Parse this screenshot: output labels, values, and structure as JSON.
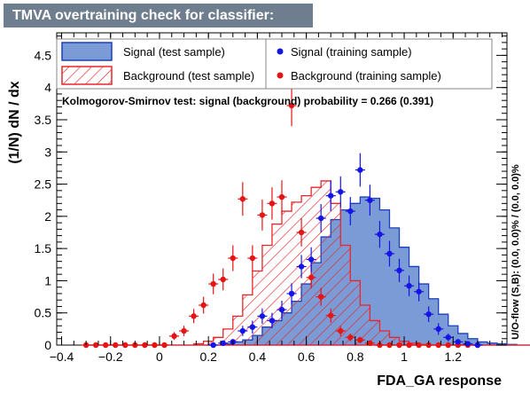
{
  "window": {
    "title": "TMVA overtraining check for classifier: FDA_GA"
  },
  "colors": {
    "signal_fill": "#7b9bd6",
    "signal_line": "#1c3fbf",
    "background_line": "#e8262b",
    "signal_points": "#1414e6",
    "background_points": "#e61414"
  },
  "chart_data": {
    "type": "bar",
    "title": "TMVA overtraining check for classifier: FDA_GA",
    "xlabel": "FDA_GA response",
    "ylabel": "(1/N) dN / dx",
    "xlim": [
      -0.42,
      1.42
    ],
    "ylim": [
      0,
      4.85
    ],
    "xticks": [
      "−0.4",
      "−0.2",
      "0",
      "0.2",
      "0.4",
      "0.6",
      "0.8",
      "1",
      "1.2"
    ],
    "xtick_values": [
      -0.4,
      -0.2,
      0,
      0.2,
      0.4,
      0.6,
      0.8,
      1.0,
      1.2
    ],
    "yticks": [
      "0",
      "0.5",
      "1",
      "1.5",
      "2",
      "2.5",
      "3",
      "3.5",
      "4",
      "4.5"
    ],
    "ytick_values": [
      0,
      0.5,
      1,
      1.5,
      2,
      2.5,
      3,
      3.5,
      4,
      4.5
    ],
    "bin_edges_start": -0.3,
    "bin_width": 0.04,
    "signal_test": [
      0,
      0,
      0,
      0,
      0,
      0,
      0,
      0,
      0,
      0,
      0,
      0,
      0,
      0,
      0.02,
      0.05,
      0.08,
      0.15,
      0.28,
      0.38,
      0.5,
      0.68,
      0.95,
      1.28,
      1.68,
      1.95,
      2.1,
      2.2,
      2.3,
      2.28,
      2.1,
      1.82,
      1.52,
      1.22,
      0.95,
      0.72,
      0.48,
      0.3,
      0.18,
      0.1,
      0.05,
      0.03,
      0.02,
      0.01,
      0,
      0
    ],
    "background_test": [
      0,
      0,
      0,
      0,
      0,
      0,
      0,
      0,
      0,
      0,
      0,
      0.02,
      0.06,
      0.12,
      0.25,
      0.45,
      0.78,
      1.15,
      1.55,
      1.88,
      2.08,
      2.22,
      2.32,
      2.45,
      2.55,
      2.2,
      1.55,
      1.0,
      0.62,
      0.38,
      0.22,
      0.12,
      0.06,
      0.03,
      0.01,
      0,
      0,
      0,
      0,
      0,
      0,
      0,
      0,
      0,
      0,
      0
    ],
    "signal_train": [
      {
        "x": 0.22,
        "y": 0.0,
        "e": 0.03
      },
      {
        "x": 0.26,
        "y": 0.03,
        "e": 0.03
      },
      {
        "x": 0.3,
        "y": 0.05,
        "e": 0.04
      },
      {
        "x": 0.34,
        "y": 0.22,
        "e": 0.08
      },
      {
        "x": 0.38,
        "y": 0.28,
        "e": 0.1
      },
      {
        "x": 0.42,
        "y": 0.45,
        "e": 0.12
      },
      {
        "x": 0.46,
        "y": 0.38,
        "e": 0.12
      },
      {
        "x": 0.5,
        "y": 0.55,
        "e": 0.14
      },
      {
        "x": 0.54,
        "y": 0.8,
        "e": 0.16
      },
      {
        "x": 0.58,
        "y": 1.22,
        "e": 0.18
      },
      {
        "x": 0.62,
        "y": 1.33,
        "e": 0.19
      },
      {
        "x": 0.66,
        "y": 1.97,
        "e": 0.22
      },
      {
        "x": 0.7,
        "y": 2.32,
        "e": 0.24
      },
      {
        "x": 0.74,
        "y": 2.38,
        "e": 0.24
      },
      {
        "x": 0.78,
        "y": 2.08,
        "e": 0.22
      },
      {
        "x": 0.82,
        "y": 2.72,
        "e": 0.26
      },
      {
        "x": 0.86,
        "y": 2.25,
        "e": 0.24
      },
      {
        "x": 0.9,
        "y": 1.72,
        "e": 0.21
      },
      {
        "x": 0.94,
        "y": 1.42,
        "e": 0.2
      },
      {
        "x": 0.98,
        "y": 1.16,
        "e": 0.18
      },
      {
        "x": 1.02,
        "y": 0.92,
        "e": 0.16
      },
      {
        "x": 1.06,
        "y": 0.83,
        "e": 0.15
      },
      {
        "x": 1.1,
        "y": 0.48,
        "e": 0.12
      },
      {
        "x": 1.14,
        "y": 0.25,
        "e": 0.09
      },
      {
        "x": 1.18,
        "y": 0.12,
        "e": 0.06
      },
      {
        "x": 1.22,
        "y": 0.05,
        "e": 0.04
      },
      {
        "x": 1.26,
        "y": 0.02,
        "e": 0.03
      },
      {
        "x": 1.3,
        "y": 0.0,
        "e": 0.02
      }
    ],
    "background_train": [
      {
        "x": -0.3,
        "y": 0.0,
        "e": 0.0
      },
      {
        "x": -0.26,
        "y": 0.0,
        "e": 0.0
      },
      {
        "x": -0.22,
        "y": 0.0,
        "e": 0.0
      },
      {
        "x": -0.18,
        "y": 0.0,
        "e": 0.0
      },
      {
        "x": -0.14,
        "y": 0.0,
        "e": 0.0
      },
      {
        "x": -0.1,
        "y": 0.0,
        "e": 0.0
      },
      {
        "x": -0.06,
        "y": 0.0,
        "e": 0.0
      },
      {
        "x": -0.02,
        "y": 0.0,
        "e": 0.0
      },
      {
        "x": 0.02,
        "y": 0.0,
        "e": 0.02
      },
      {
        "x": 0.06,
        "y": 0.14,
        "e": 0.06
      },
      {
        "x": 0.1,
        "y": 0.22,
        "e": 0.08
      },
      {
        "x": 0.14,
        "y": 0.45,
        "e": 0.11
      },
      {
        "x": 0.18,
        "y": 0.62,
        "e": 0.13
      },
      {
        "x": 0.22,
        "y": 0.95,
        "e": 0.16
      },
      {
        "x": 0.26,
        "y": 1.02,
        "e": 0.17
      },
      {
        "x": 0.3,
        "y": 1.35,
        "e": 0.2
      },
      {
        "x": 0.34,
        "y": 2.27,
        "e": 0.26
      },
      {
        "x": 0.38,
        "y": 1.35,
        "e": 0.2
      },
      {
        "x": 0.42,
        "y": 2.02,
        "e": 0.24
      },
      {
        "x": 0.46,
        "y": 2.2,
        "e": 0.25
      },
      {
        "x": 0.5,
        "y": 2.3,
        "e": 0.26
      },
      {
        "x": 0.54,
        "y": 3.72,
        "e": 0.32
      },
      {
        "x": 0.58,
        "y": 1.75,
        "e": 0.22
      },
      {
        "x": 0.62,
        "y": 1.05,
        "e": 0.17
      },
      {
        "x": 0.66,
        "y": 0.75,
        "e": 0.14
      },
      {
        "x": 0.7,
        "y": 0.46,
        "e": 0.11
      },
      {
        "x": 0.74,
        "y": 0.22,
        "e": 0.08
      },
      {
        "x": 0.78,
        "y": 0.12,
        "e": 0.06
      },
      {
        "x": 0.82,
        "y": 0.08,
        "e": 0.05
      },
      {
        "x": 0.86,
        "y": 0.03,
        "e": 0.03
      },
      {
        "x": 0.9,
        "y": 0.0,
        "e": 0.02
      },
      {
        "x": 0.94,
        "y": 0.0,
        "e": 0.0
      },
      {
        "x": 0.98,
        "y": 0.0,
        "e": 0.0
      },
      {
        "x": 1.02,
        "y": 0.0,
        "e": 0.0
      },
      {
        "x": 1.06,
        "y": 0.0,
        "e": 0.0
      },
      {
        "x": 1.1,
        "y": 0.0,
        "e": 0.0
      },
      {
        "x": 1.14,
        "y": 0.0,
        "e": 0.0
      },
      {
        "x": 1.18,
        "y": 0.0,
        "e": 0.0
      },
      {
        "x": 1.22,
        "y": 0.0,
        "e": 0.0
      },
      {
        "x": 1.26,
        "y": 0.0,
        "e": 0.0
      },
      {
        "x": 1.3,
        "y": 0.0,
        "e": 0.0
      }
    ],
    "legend": {
      "signal_test": "Signal (test sample)",
      "background_test": "Background (test sample)",
      "signal_train": "Signal (training sample)",
      "background_train": "Background (training sample)"
    },
    "ks_text": "Kolmogorov-Smirnov test: signal (background) probability = 0.266 (0.391)",
    "overflow_text": "U/O-flow (S,B): (0.0, 0.0)% / (0.0, 0.0)%"
  }
}
